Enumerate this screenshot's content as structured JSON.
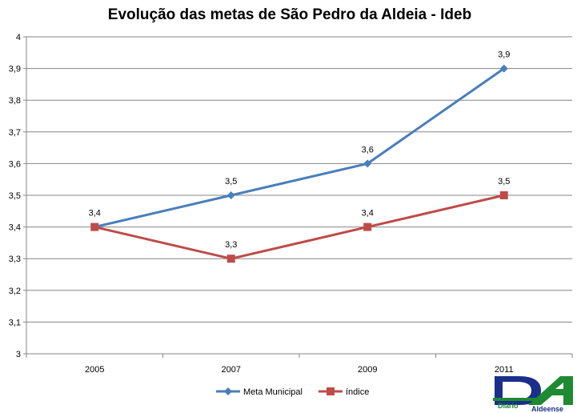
{
  "chart_data": {
    "type": "line",
    "title": "Evolução das metas de São Pedro da Aldeia - Ideb",
    "categories": [
      "2005",
      "2007",
      "2009",
      "2011"
    ],
    "series": [
      {
        "name": "Meta Municipal",
        "color": "#4a7ebb",
        "marker": "diamond",
        "values": [
          3.4,
          3.5,
          3.6,
          3.9
        ],
        "labels": [
          "3,4",
          "3,5",
          "3,6",
          "3,9"
        ]
      },
      {
        "name": "índice",
        "color": "#be4b48",
        "marker": "square",
        "values": [
          3.4,
          3.3,
          3.4,
          3.5
        ],
        "labels": [
          "",
          "3,3",
          "3,4",
          "3,5"
        ]
      }
    ],
    "ylim": [
      3,
      4
    ],
    "yticks": [
      "3",
      "3,1",
      "3,2",
      "3,3",
      "3,4",
      "3,5",
      "3,6",
      "3,7",
      "3,8",
      "3,9",
      "4"
    ],
    "xlabel": "",
    "ylabel": "",
    "grid": true,
    "legend": "bottom"
  },
  "logo": {
    "text_top": "Diário",
    "text_bottom": "Aldeense",
    "colors": {
      "green": "#1e8a32",
      "blue": "#1a2f8a"
    }
  }
}
